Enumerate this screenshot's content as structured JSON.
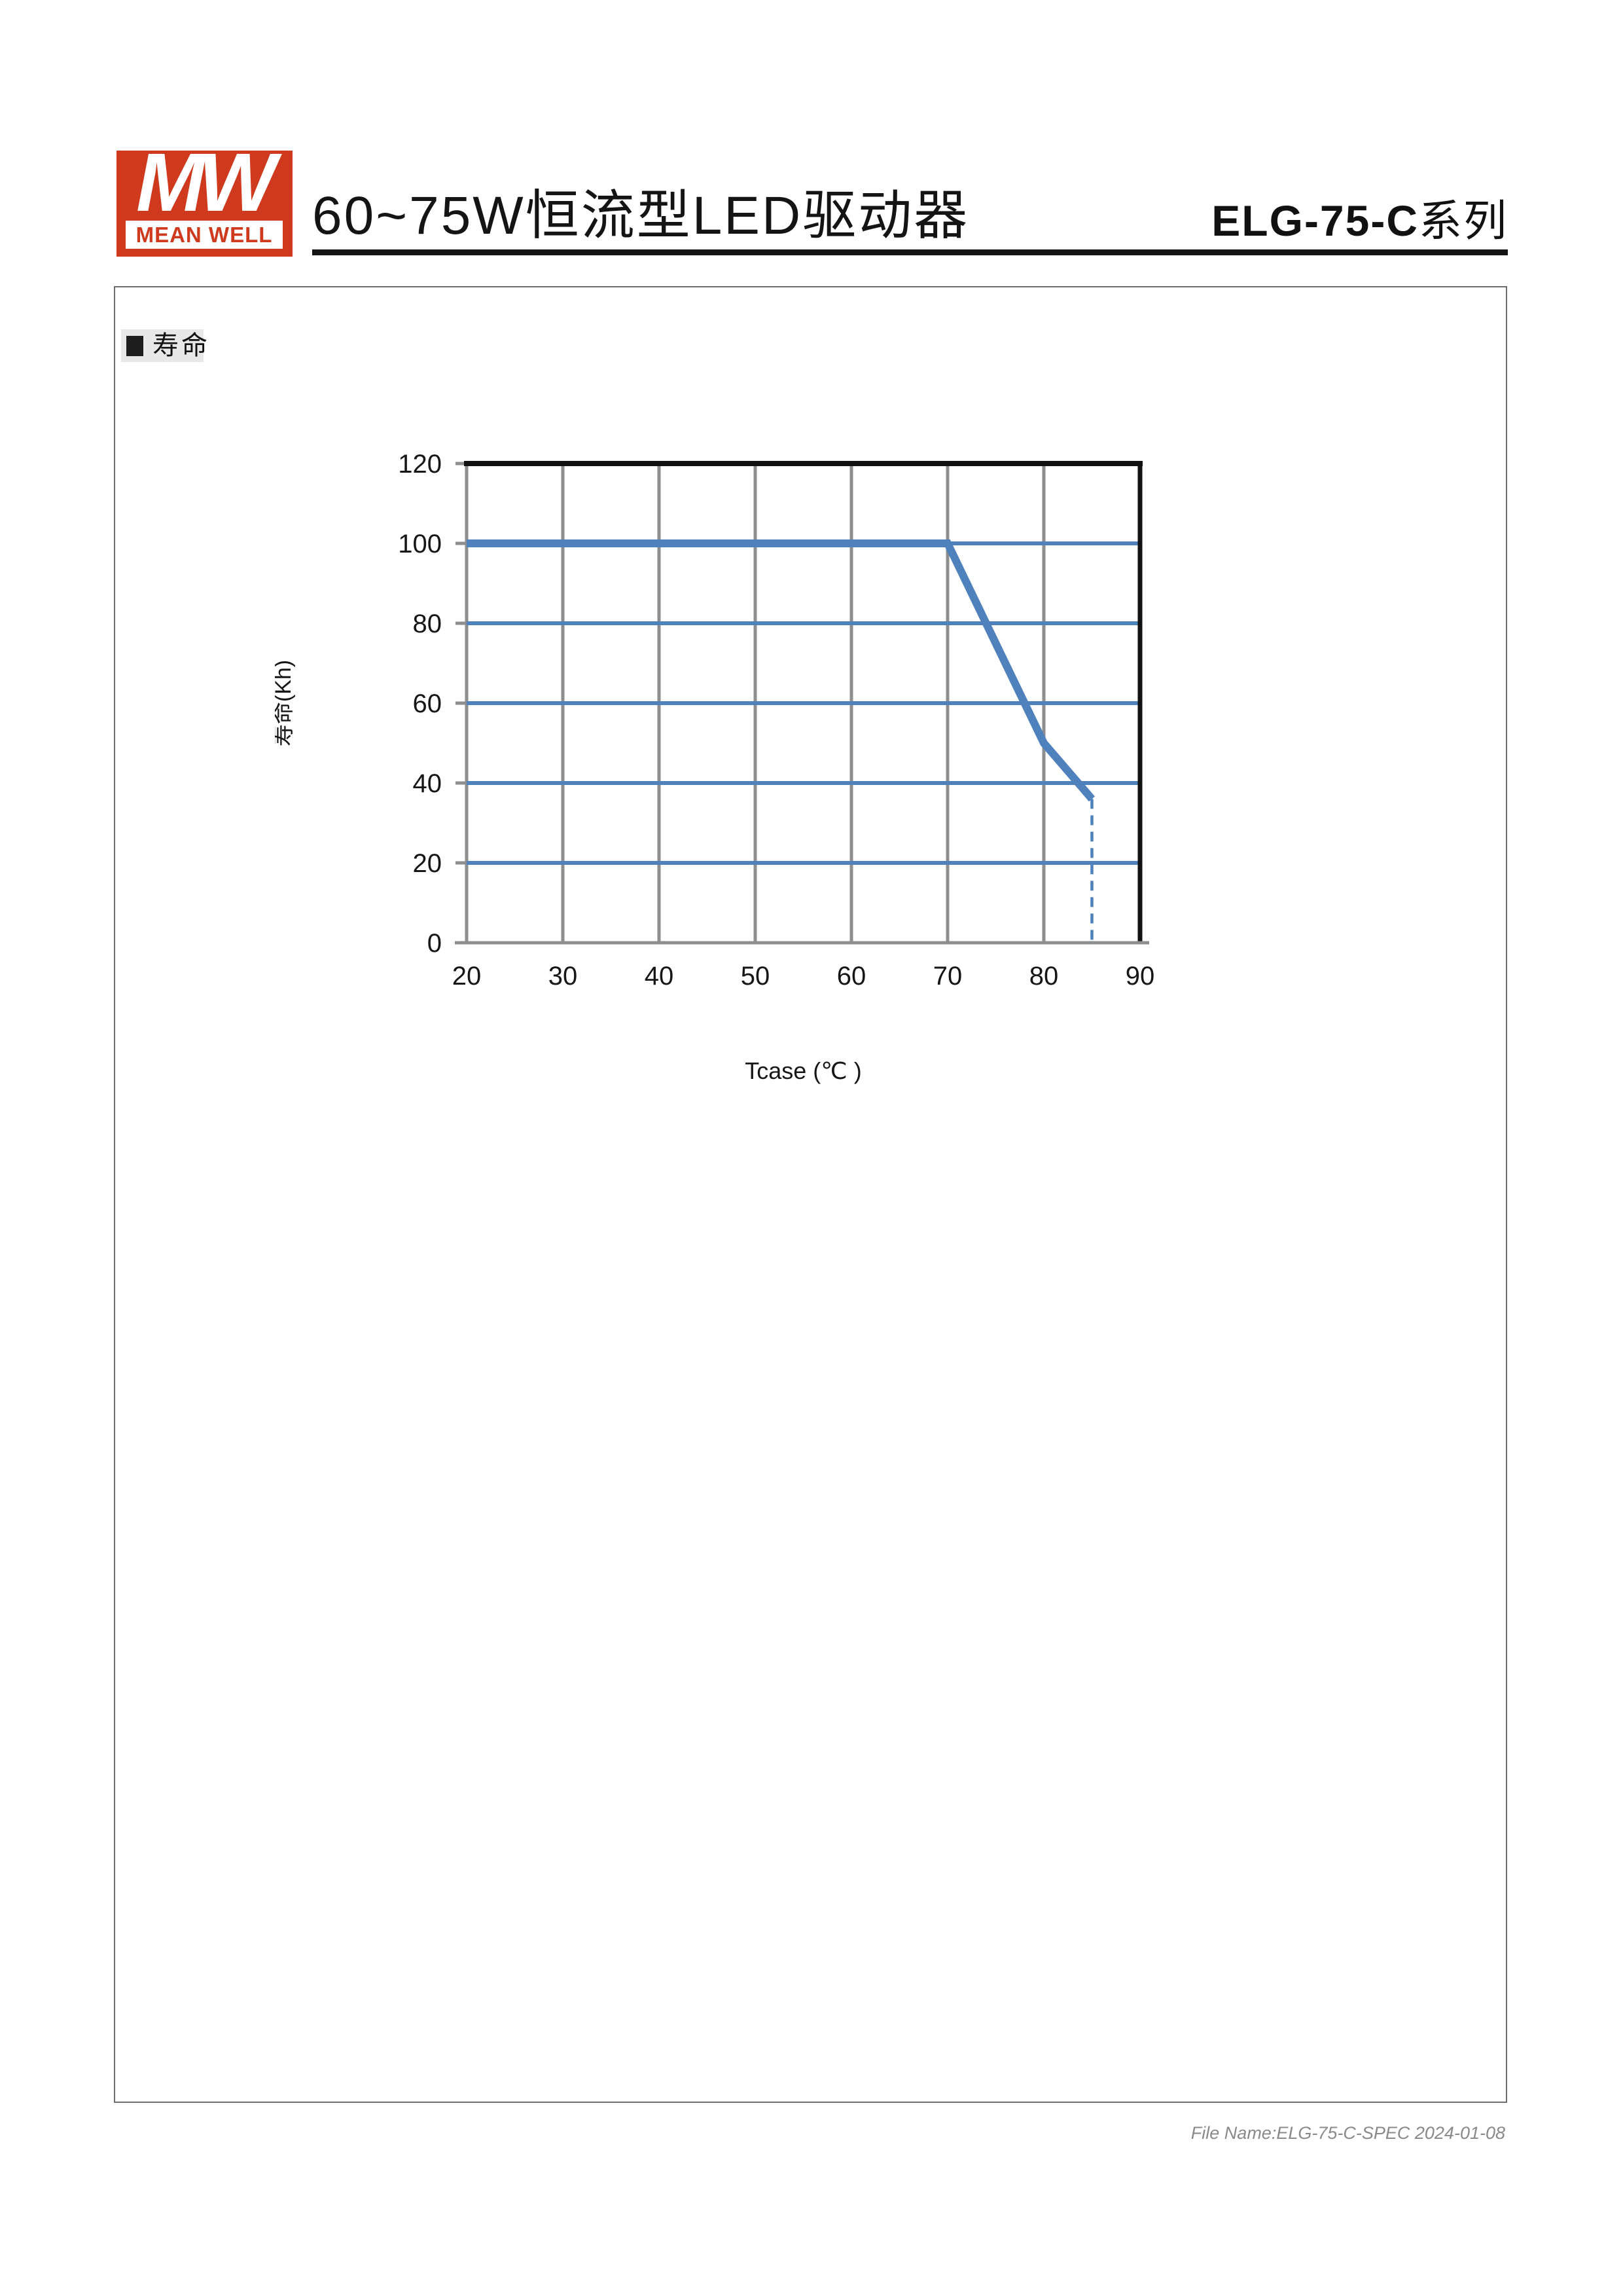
{
  "page": {
    "header": {
      "logo": {
        "mw": "MW",
        "brand": "MEAN WELL"
      },
      "title": "60~75W恒流型LED驱动器",
      "series_model": "ELG-75-C",
      "series_suffix": "系列"
    },
    "section": {
      "label": "寿命"
    },
    "footer": {
      "file_info": "File Name:ELG-75-C-SPEC 2024-01-08"
    },
    "colors": {
      "brand_red": "#cf3a1e",
      "curve_blue": "#4f81bd",
      "grid_gray": "#8e8e8e"
    }
  },
  "chart_data": {
    "type": "line",
    "xlabel": "Tcase (℃ )",
    "ylabel": "寿命(Kh)",
    "xlim": [
      20,
      90
    ],
    "ylim": [
      0,
      120
    ],
    "x_ticks": [
      20,
      30,
      40,
      50,
      60,
      70,
      80,
      90
    ],
    "y_ticks": [
      0,
      20,
      40,
      60,
      80,
      100,
      120
    ],
    "grid": {
      "vertical_color": "#8e8e8e",
      "horizontal_color": "#4f81bd"
    },
    "line_color": "#4f81bd",
    "series": [
      {
        "name": "寿命",
        "x": [
          20,
          70,
          80,
          85
        ],
        "y": [
          100,
          100,
          50,
          36
        ]
      }
    ],
    "dashed_drop": {
      "x": 85,
      "y_from": 36,
      "y_to": 0
    },
    "legend": "none"
  }
}
